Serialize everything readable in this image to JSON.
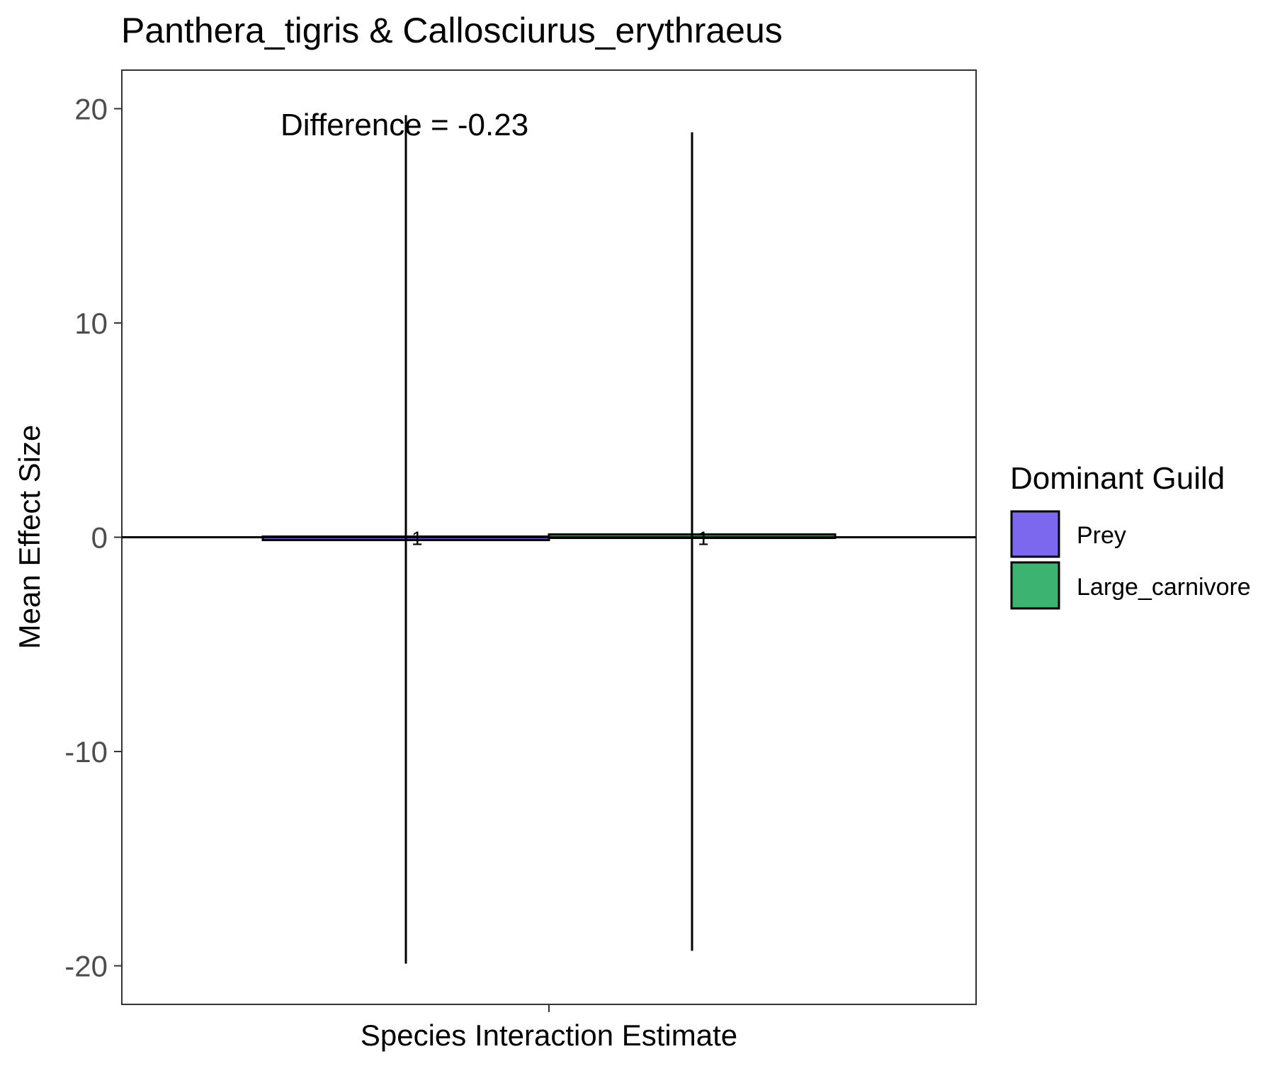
{
  "chart_data": {
    "type": "bar",
    "title": "Panthera_tigris & Callosciurus_erythraeus",
    "xlabel": "Species Interaction Estimate",
    "ylabel": "Mean Effect Size",
    "categories": [
      ""
    ],
    "ylim": [
      -21.8,
      21.8
    ],
    "yticks": [
      -20,
      -10,
      0,
      10,
      20
    ],
    "grid": false,
    "legend": {
      "title": "Dominant Guild",
      "placement": "right",
      "entries": [
        {
          "name": "Prey",
          "color": "#7B68EE"
        },
        {
          "name": "Large_carnivore",
          "color": "#3CB371"
        }
      ]
    },
    "series": [
      {
        "name": "Prey",
        "color": "#7B68EE",
        "values": [
          -0.1
        ],
        "error_low": [
          -19.9
        ],
        "error_high": [
          19.7
        ],
        "label": "1"
      },
      {
        "name": "Large_carnivore",
        "color": "#3CB371",
        "values": [
          0.1
        ],
        "error_low": [
          -19.3
        ],
        "error_high": [
          18.9
        ],
        "label": "1"
      }
    ],
    "annotations": [
      {
        "text": "Difference = -0.23",
        "x": "Prey",
        "y": 19.3
      }
    ],
    "reference_line": {
      "y": 0
    }
  }
}
